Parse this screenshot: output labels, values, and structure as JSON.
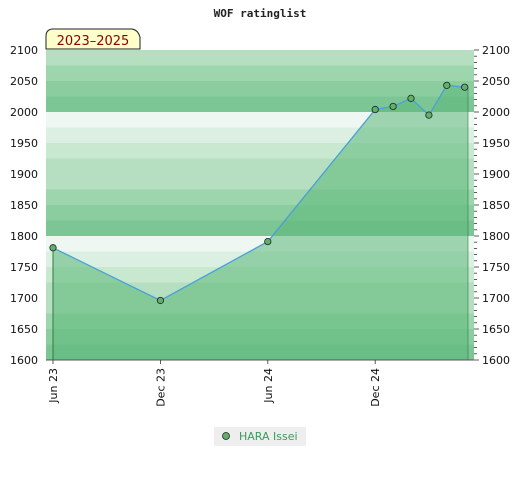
{
  "chart_data": {
    "type": "area",
    "title": "WOF ratinglist",
    "period_label": "2023–2025",
    "xlabel": "",
    "ylabel": "",
    "ylim": [
      1600,
      2100
    ],
    "yticks": [
      1600,
      1650,
      1700,
      1750,
      1800,
      1850,
      1900,
      1950,
      2000,
      2050,
      2100
    ],
    "xticks": [
      "Jun 23",
      "Dec 23",
      "Jun 24",
      "Dec 24"
    ],
    "series": [
      {
        "name": "HARA Issei",
        "x": [
          "2023-06",
          "2023-12",
          "2024-06",
          "2024-12",
          "2025-01",
          "2025-02",
          "2025-03",
          "2025-04",
          "2025-05"
        ],
        "values": [
          1781,
          1696,
          1791,
          2004,
          2009,
          2022,
          1995,
          2043,
          2040
        ]
      }
    ],
    "colors": {
      "area_fill": "#5bb878",
      "line": "#4aa0d8",
      "marker": "#5fb06a",
      "band_light": "#f0f8f2",
      "band_dark": "#b6e0c2"
    },
    "grid": true,
    "legend_position": "bottom-center"
  }
}
